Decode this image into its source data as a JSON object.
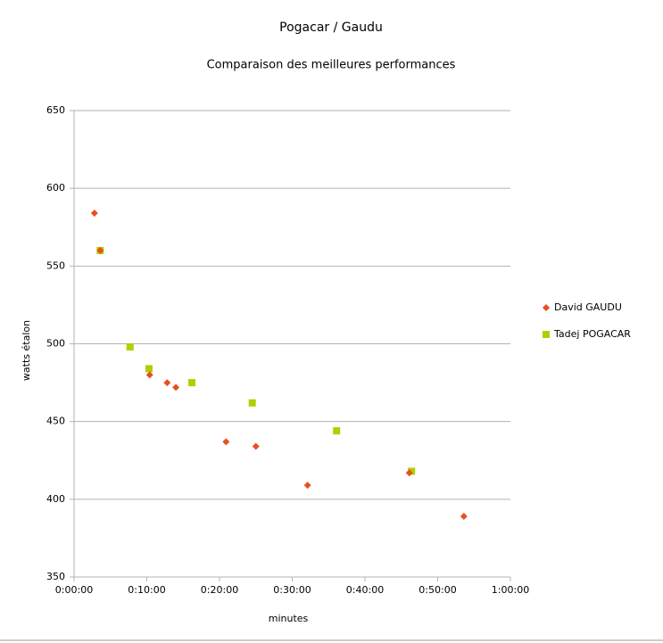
{
  "chart_data": {
    "type": "scatter",
    "title": "Pogacar / Gaudu",
    "subtitle": "Comparaison des meilleures performances",
    "x_label": "minutes",
    "y_label": "watts étalon",
    "xlim": [
      0,
      60
    ],
    "xticks": [
      {
        "value": 0,
        "label": "0:00:00"
      },
      {
        "value": 10,
        "label": "0:10:00"
      },
      {
        "value": 20,
        "label": "0:20:00"
      },
      {
        "value": 30,
        "label": "0:30:00"
      },
      {
        "value": 40,
        "label": "0:40:00"
      },
      {
        "value": 50,
        "label": "0:50:00"
      },
      {
        "value": 60,
        "label": "1:00:00"
      }
    ],
    "ylim": [
      350,
      650
    ],
    "yticks": [
      350,
      400,
      450,
      500,
      550,
      600,
      650
    ],
    "grid": true,
    "legend": "right",
    "series": [
      {
        "name": "David GAUDU",
        "color": "#e8501e",
        "marker": "diamond",
        "x": [
          2.8,
          3.6,
          10.4,
          12.8,
          14.0,
          20.9,
          25.0,
          32.1,
          46.1,
          53.6
        ],
        "values": [
          584,
          560,
          480,
          475,
          472,
          437,
          434,
          409,
          417,
          389
        ]
      },
      {
        "name": "Tadej POGACAR",
        "color": "#aecf00",
        "marker": "square",
        "x": [
          3.6,
          7.7,
          10.3,
          16.2,
          24.5,
          36.1,
          46.4
        ],
        "values": [
          560,
          498,
          484,
          475,
          462,
          444,
          418
        ]
      }
    ]
  }
}
